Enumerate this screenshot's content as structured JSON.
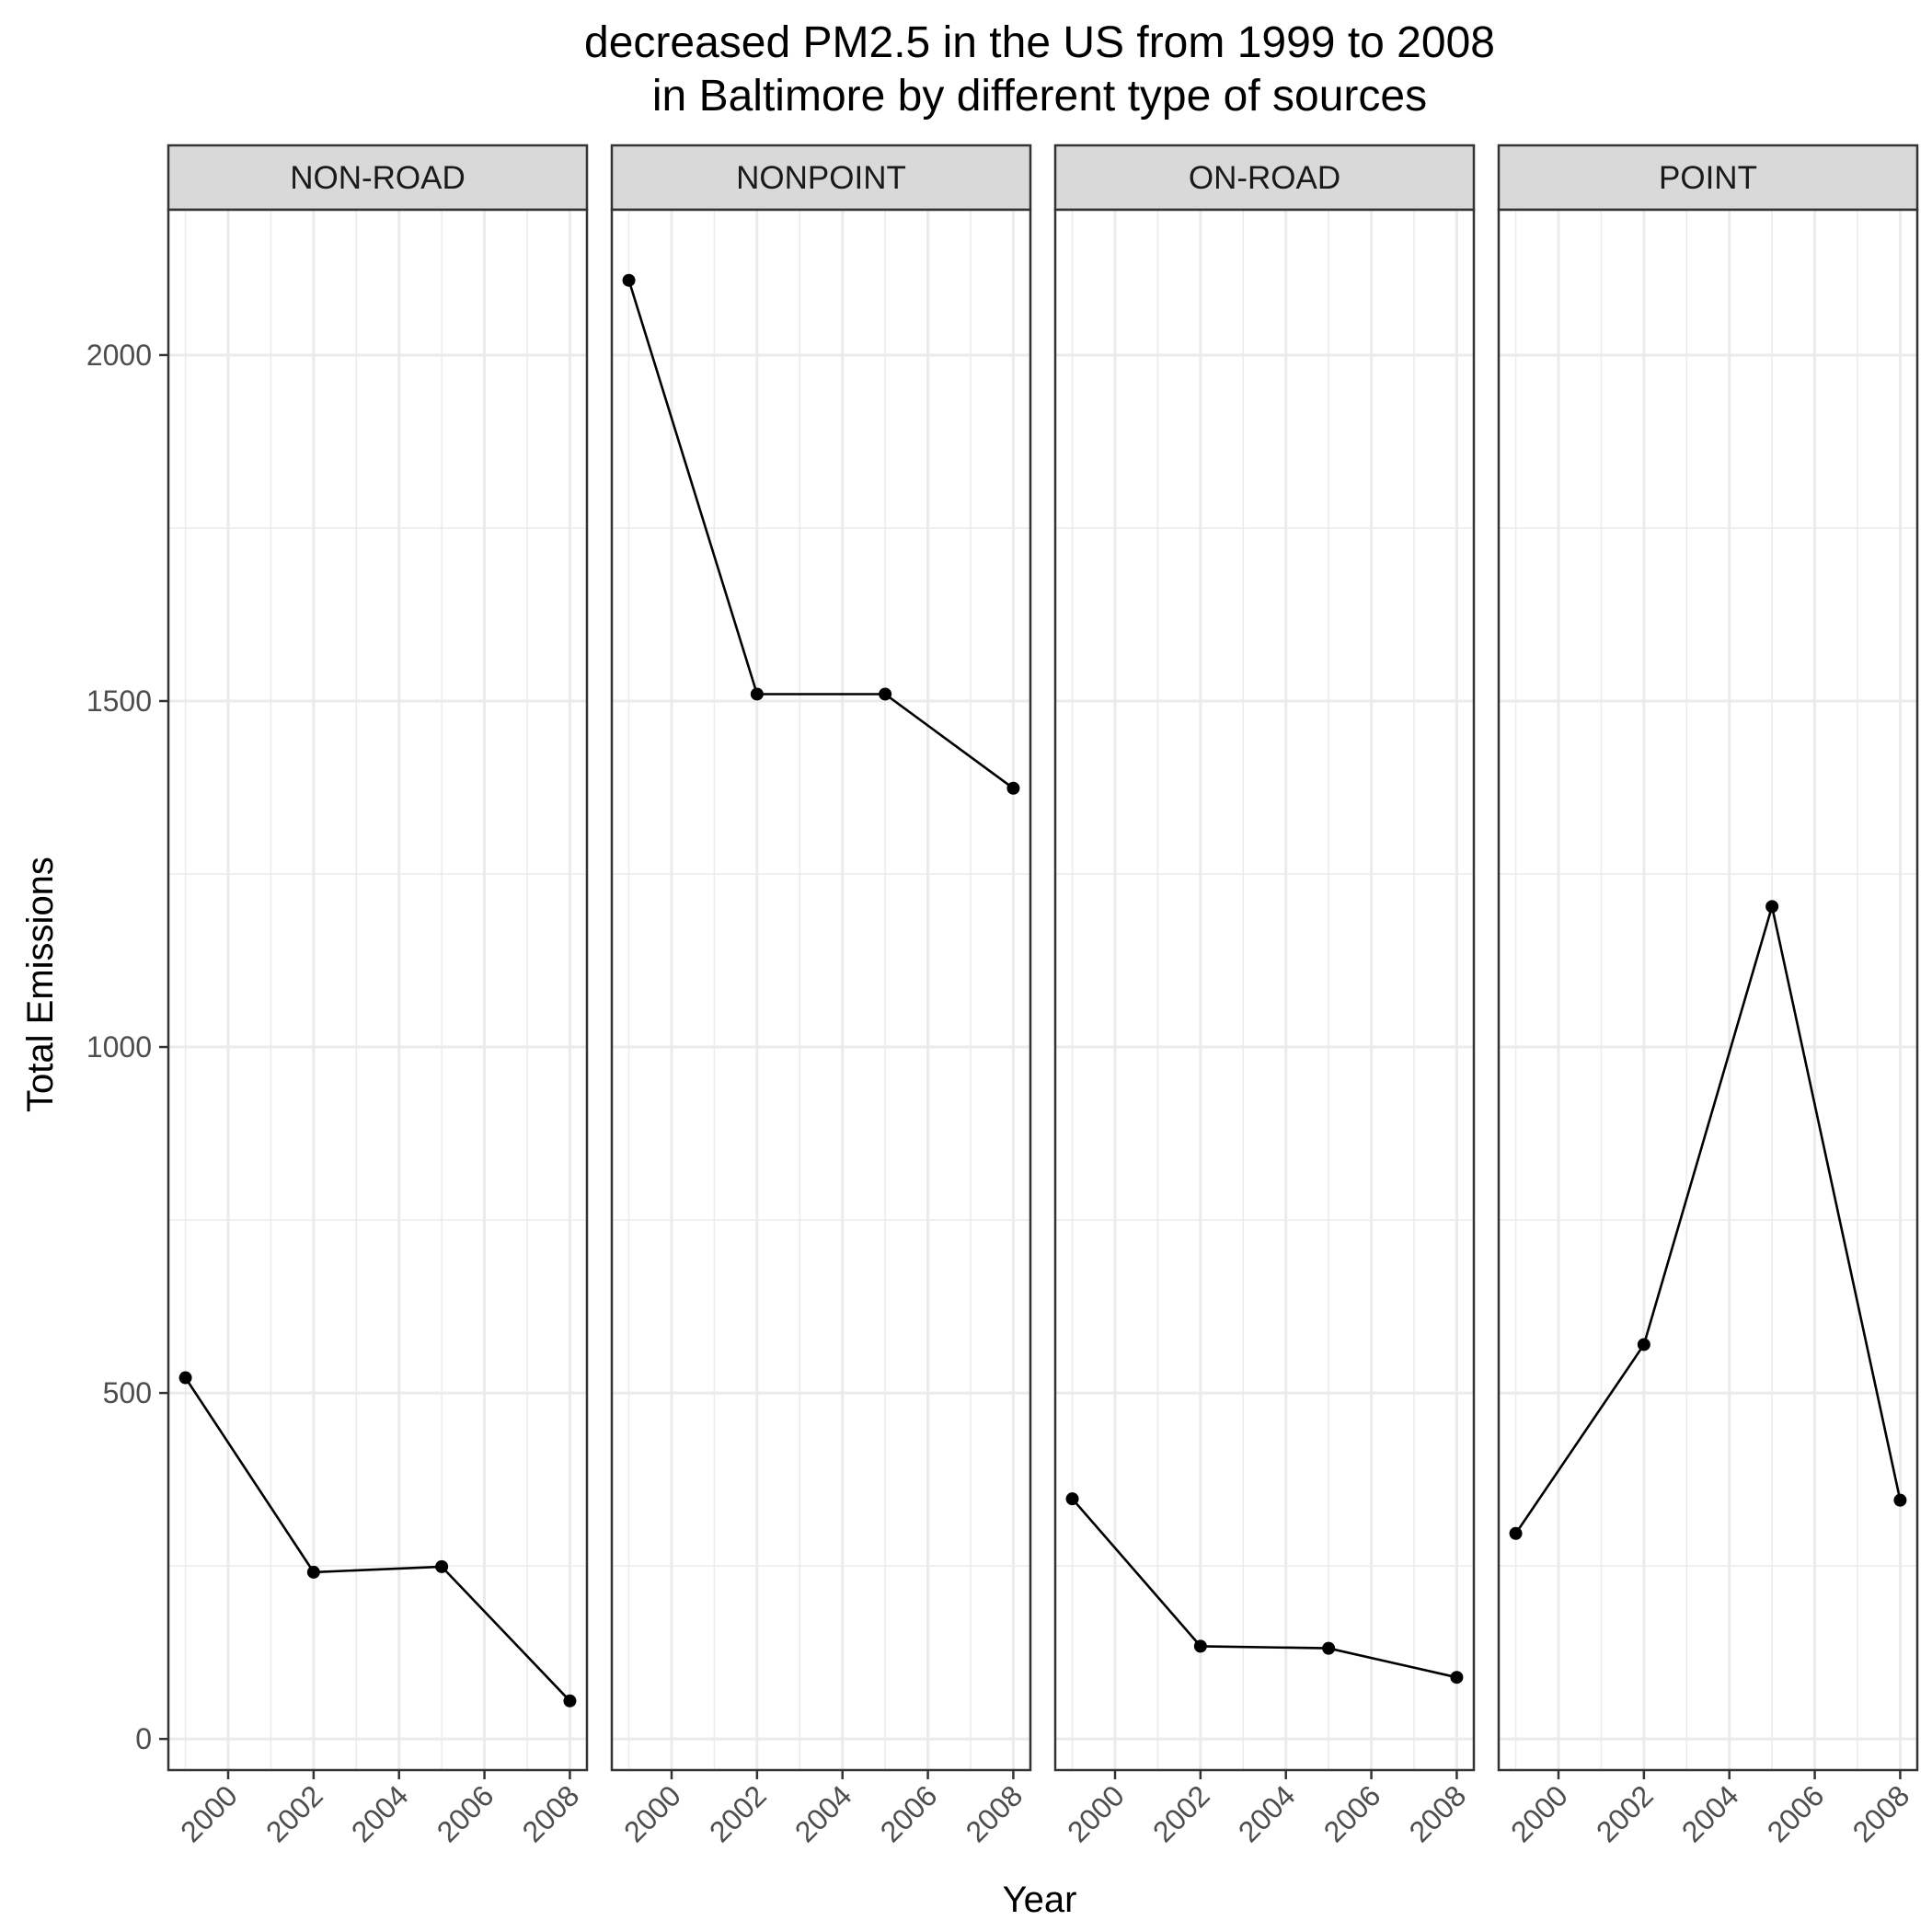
{
  "chart_data": {
    "type": "line",
    "title": "decreased PM2.5 in the US from 1999 to 2008\nin Baltimore by different type of sources",
    "xlabel": "Year",
    "ylabel": "Total Emissions",
    "x_ticks": [
      2000,
      2002,
      2004,
      2006,
      2008
    ],
    "y_ticks": [
      0,
      500,
      1000,
      1500,
      2000
    ],
    "xlim": [
      1998.6,
      2008.4
    ],
    "ylim": [
      -45,
      2210
    ],
    "grid": true,
    "facets": [
      {
        "name": "NON-ROAD",
        "x": [
          1999,
          2002,
          2005,
          2008
        ],
        "values": [
          522,
          241,
          249,
          55
        ]
      },
      {
        "name": "NONPOINT",
        "x": [
          1999,
          2002,
          2005,
          2008
        ],
        "values": [
          2108,
          1510,
          1510,
          1374
        ]
      },
      {
        "name": "ON-ROAD",
        "x": [
          1999,
          2002,
          2005,
          2008
        ],
        "values": [
          347,
          134,
          131,
          89
        ]
      },
      {
        "name": "POINT",
        "x": [
          1999,
          2002,
          2005,
          2008
        ],
        "values": [
          297,
          570,
          1203,
          345
        ]
      }
    ]
  }
}
